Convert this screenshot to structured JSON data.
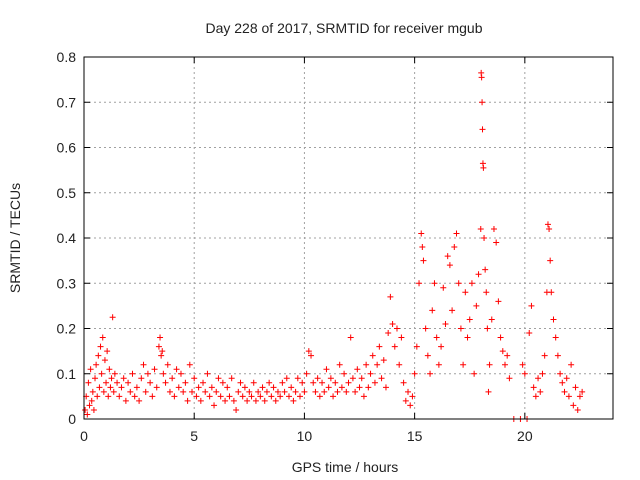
{
  "chart_data": {
    "type": "scatter",
    "title": "Day 228 of 2017, SRMTID for receiver mgub",
    "xlabel": "GPS time / hours",
    "ylabel": "SRMTID / TECUs",
    "xlim": [
      0,
      24
    ],
    "ylim": [
      0,
      0.8
    ],
    "xticks": [
      0,
      5,
      10,
      15,
      20
    ],
    "yticks": [
      0,
      0.1,
      0.2,
      0.3,
      0.4,
      0.5,
      0.6,
      0.7,
      0.8
    ],
    "xtick_labels": [
      "0",
      "5",
      "10",
      "15",
      "20"
    ],
    "ytick_labels": [
      "0",
      "0.1",
      "0.2",
      "0.3",
      "0.4",
      "0.5",
      "0.6",
      "0.7",
      "0.8"
    ],
    "grid": true,
    "marker": "+",
    "color": "#ff0000",
    "series": [
      {
        "name": "mgub",
        "points": [
          [
            0.05,
            0.02
          ],
          [
            0.1,
            0.05
          ],
          [
            0.15,
            0.01
          ],
          [
            0.2,
            0.08
          ],
          [
            0.25,
            0.03
          ],
          [
            0.3,
            0.11
          ],
          [
            0.35,
            0.04
          ],
          [
            0.4,
            0.06
          ],
          [
            0.45,
            0.02
          ],
          [
            0.5,
            0.09
          ],
          [
            0.55,
            0.12
          ],
          [
            0.6,
            0.05
          ],
          [
            0.65,
            0.14
          ],
          [
            0.7,
            0.07
          ],
          [
            0.75,
            0.16
          ],
          [
            0.8,
            0.1
          ],
          [
            0.85,
            0.18
          ],
          [
            0.9,
            0.06
          ],
          [
            0.95,
            0.13
          ],
          [
            1.0,
            0.08
          ],
          [
            1.05,
            0.15
          ],
          [
            1.1,
            0.05
          ],
          [
            1.15,
            0.11
          ],
          [
            1.2,
            0.07
          ],
          [
            1.25,
            0.09
          ],
          [
            1.3,
            0.225
          ],
          [
            1.35,
            0.06
          ],
          [
            1.4,
            0.1
          ],
          [
            1.5,
            0.08
          ],
          [
            1.6,
            0.05
          ],
          [
            1.7,
            0.07
          ],
          [
            1.8,
            0.09
          ],
          [
            1.9,
            0.04
          ],
          [
            2.0,
            0.08
          ],
          [
            2.1,
            0.06
          ],
          [
            2.2,
            0.1
          ],
          [
            2.3,
            0.05
          ],
          [
            2.4,
            0.07
          ],
          [
            2.5,
            0.04
          ],
          [
            2.6,
            0.09
          ],
          [
            2.7,
            0.12
          ],
          [
            2.8,
            0.06
          ],
          [
            2.9,
            0.1
          ],
          [
            3.0,
            0.08
          ],
          [
            3.1,
            0.05
          ],
          [
            3.2,
            0.11
          ],
          [
            3.3,
            0.07
          ],
          [
            3.4,
            0.16
          ],
          [
            3.45,
            0.18
          ],
          [
            3.5,
            0.14
          ],
          [
            3.55,
            0.15
          ],
          [
            3.6,
            0.1
          ],
          [
            3.7,
            0.08
          ],
          [
            3.8,
            0.12
          ],
          [
            3.9,
            0.06
          ],
          [
            4.0,
            0.09
          ],
          [
            4.1,
            0.05
          ],
          [
            4.2,
            0.11
          ],
          [
            4.3,
            0.07
          ],
          [
            4.4,
            0.1
          ],
          [
            4.5,
            0.06
          ],
          [
            4.6,
            0.08
          ],
          [
            4.7,
            0.04
          ],
          [
            4.8,
            0.12
          ],
          [
            4.9,
            0.06
          ],
          [
            5.0,
            0.09
          ],
          [
            5.1,
            0.05
          ],
          [
            5.2,
            0.07
          ],
          [
            5.3,
            0.04
          ],
          [
            5.4,
            0.08
          ],
          [
            5.5,
            0.06
          ],
          [
            5.6,
            0.1
          ],
          [
            5.7,
            0.05
          ],
          [
            5.8,
            0.07
          ],
          [
            5.9,
            0.03
          ],
          [
            6.0,
            0.06
          ],
          [
            6.1,
            0.09
          ],
          [
            6.2,
            0.05
          ],
          [
            6.3,
            0.08
          ],
          [
            6.4,
            0.04
          ],
          [
            6.5,
            0.07
          ],
          [
            6.6,
            0.05
          ],
          [
            6.7,
            0.09
          ],
          [
            6.8,
            0.04
          ],
          [
            6.9,
            0.02
          ],
          [
            7.0,
            0.06
          ],
          [
            7.1,
            0.08
          ],
          [
            7.2,
            0.05
          ],
          [
            7.3,
            0.07
          ],
          [
            7.4,
            0.04
          ],
          [
            7.5,
            0.06
          ],
          [
            7.6,
            0.05
          ],
          [
            7.7,
            0.08
          ],
          [
            7.8,
            0.04
          ],
          [
            7.9,
            0.06
          ],
          [
            8.0,
            0.05
          ],
          [
            8.1,
            0.07
          ],
          [
            8.2,
            0.04
          ],
          [
            8.3,
            0.06
          ],
          [
            8.4,
            0.08
          ],
          [
            8.5,
            0.05
          ],
          [
            8.6,
            0.07
          ],
          [
            8.7,
            0.04
          ],
          [
            8.8,
            0.06
          ],
          [
            8.9,
            0.05
          ],
          [
            9.0,
            0.08
          ],
          [
            9.1,
            0.06
          ],
          [
            9.2,
            0.09
          ],
          [
            9.3,
            0.05
          ],
          [
            9.4,
            0.07
          ],
          [
            9.5,
            0.04
          ],
          [
            9.6,
            0.06
          ],
          [
            9.7,
            0.09
          ],
          [
            9.8,
            0.05
          ],
          [
            9.9,
            0.08
          ],
          [
            10.0,
            0.06
          ],
          [
            10.1,
            0.1
          ],
          [
            10.2,
            0.15
          ],
          [
            10.3,
            0.14
          ],
          [
            10.4,
            0.08
          ],
          [
            10.5,
            0.06
          ],
          [
            10.6,
            0.09
          ],
          [
            10.7,
            0.05
          ],
          [
            10.8,
            0.08
          ],
          [
            10.9,
            0.06
          ],
          [
            11.0,
            0.11
          ],
          [
            11.1,
            0.07
          ],
          [
            11.2,
            0.09
          ],
          [
            11.3,
            0.05
          ],
          [
            11.4,
            0.08
          ],
          [
            11.5,
            0.06
          ],
          [
            11.6,
            0.12
          ],
          [
            11.7,
            0.07
          ],
          [
            11.8,
            0.1
          ],
          [
            11.9,
            0.06
          ],
          [
            12.0,
            0.08
          ],
          [
            12.1,
            0.18
          ],
          [
            12.2,
            0.09
          ],
          [
            12.3,
            0.06
          ],
          [
            12.4,
            0.11
          ],
          [
            12.5,
            0.07
          ],
          [
            12.6,
            0.09
          ],
          [
            12.7,
            0.05
          ],
          [
            12.8,
            0.12
          ],
          [
            12.9,
            0.07
          ],
          [
            13.0,
            0.1
          ],
          [
            13.1,
            0.14
          ],
          [
            13.2,
            0.08
          ],
          [
            13.3,
            0.12
          ],
          [
            13.4,
            0.16
          ],
          [
            13.5,
            0.09
          ],
          [
            13.6,
            0.13
          ],
          [
            13.7,
            0.07
          ],
          [
            13.8,
            0.19
          ],
          [
            13.9,
            0.27
          ],
          [
            14.0,
            0.21
          ],
          [
            14.1,
            0.16
          ],
          [
            14.2,
            0.2
          ],
          [
            14.3,
            0.12
          ],
          [
            14.4,
            0.18
          ],
          [
            14.5,
            0.08
          ],
          [
            14.6,
            0.04
          ],
          [
            14.7,
            0.06
          ],
          [
            14.8,
            0.03
          ],
          [
            14.9,
            0.05
          ],
          [
            15.0,
            0.1
          ],
          [
            15.1,
            0.16
          ],
          [
            15.2,
            0.3
          ],
          [
            15.3,
            0.41
          ],
          [
            15.35,
            0.38
          ],
          [
            15.4,
            0.35
          ],
          [
            15.5,
            0.2
          ],
          [
            15.6,
            0.14
          ],
          [
            15.7,
            0.1
          ],
          [
            15.8,
            0.24
          ],
          [
            15.9,
            0.3
          ],
          [
            16.0,
            0.18
          ],
          [
            16.1,
            0.12
          ],
          [
            16.2,
            0.16
          ],
          [
            16.3,
            0.29
          ],
          [
            16.4,
            0.21
          ],
          [
            16.5,
            0.36
          ],
          [
            16.6,
            0.34
          ],
          [
            16.7,
            0.24
          ],
          [
            16.8,
            0.38
          ],
          [
            16.9,
            0.41
          ],
          [
            17.0,
            0.3
          ],
          [
            17.1,
            0.2
          ],
          [
            17.2,
            0.12
          ],
          [
            17.3,
            0.28
          ],
          [
            17.4,
            0.18
          ],
          [
            17.5,
            0.22
          ],
          [
            17.6,
            0.3
          ],
          [
            17.7,
            0.1
          ],
          [
            17.8,
            0.25
          ],
          [
            17.9,
            0.32
          ],
          [
            18.0,
            0.42
          ],
          [
            18.02,
            0.765
          ],
          [
            18.04,
            0.755
          ],
          [
            18.06,
            0.7
          ],
          [
            18.08,
            0.64
          ],
          [
            18.1,
            0.565
          ],
          [
            18.12,
            0.555
          ],
          [
            18.15,
            0.4
          ],
          [
            18.2,
            0.33
          ],
          [
            18.25,
            0.28
          ],
          [
            18.3,
            0.2
          ],
          [
            18.35,
            0.06
          ],
          [
            18.4,
            0.12
          ],
          [
            18.5,
            0.22
          ],
          [
            18.6,
            0.42
          ],
          [
            18.7,
            0.39
          ],
          [
            18.8,
            0.26
          ],
          [
            18.9,
            0.18
          ],
          [
            19.0,
            0.15
          ],
          [
            19.1,
            0.12
          ],
          [
            19.2,
            0.14
          ],
          [
            19.3,
            0.09
          ],
          [
            19.5,
            0.0
          ],
          [
            19.8,
            0.0
          ],
          [
            19.9,
            0.12
          ],
          [
            20.0,
            0.1
          ],
          [
            20.1,
            0.0
          ],
          [
            20.2,
            0.19
          ],
          [
            20.3,
            0.25
          ],
          [
            20.4,
            0.07
          ],
          [
            20.5,
            0.05
          ],
          [
            20.6,
            0.09
          ],
          [
            20.7,
            0.06
          ],
          [
            20.8,
            0.1
          ],
          [
            20.9,
            0.14
          ],
          [
            21.0,
            0.28
          ],
          [
            21.05,
            0.43
          ],
          [
            21.1,
            0.42
          ],
          [
            21.15,
            0.35
          ],
          [
            21.2,
            0.28
          ],
          [
            21.3,
            0.22
          ],
          [
            21.4,
            0.18
          ],
          [
            21.5,
            0.14
          ],
          [
            21.6,
            0.1
          ],
          [
            21.7,
            0.08
          ],
          [
            21.8,
            0.06
          ],
          [
            21.9,
            0.09
          ],
          [
            22.0,
            0.05
          ],
          [
            22.1,
            0.12
          ],
          [
            22.2,
            0.03
          ],
          [
            22.3,
            0.07
          ],
          [
            22.4,
            0.02
          ],
          [
            22.5,
            0.05
          ],
          [
            22.6,
            0.06
          ]
        ]
      }
    ]
  }
}
